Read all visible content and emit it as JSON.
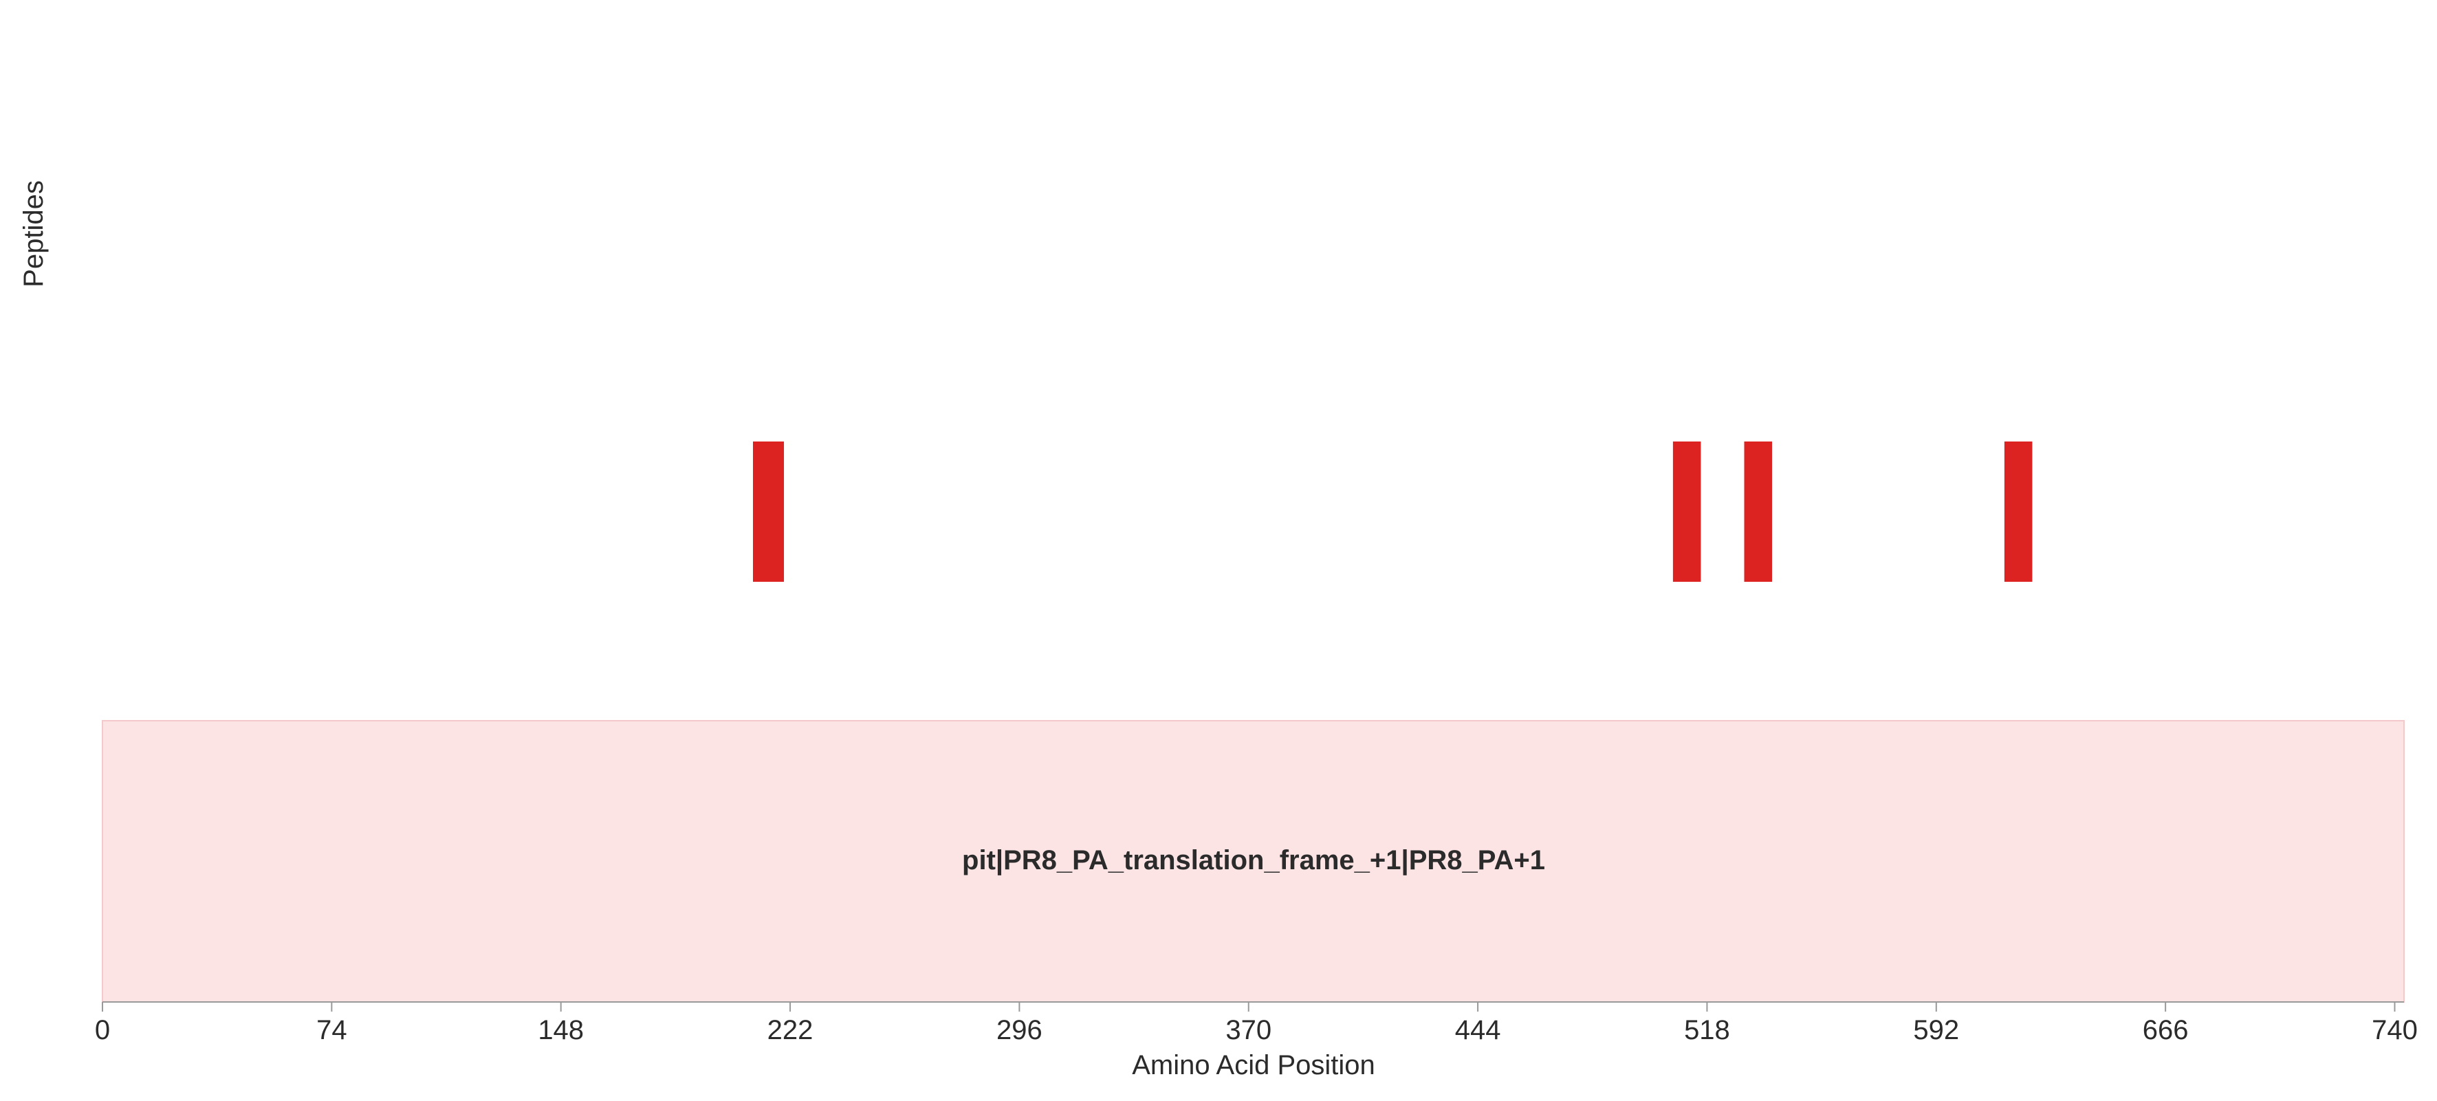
{
  "chart_data": {
    "type": "bar",
    "title": "",
    "xlabel": "Amino Acid Position",
    "ylabel": "Peptides",
    "xlim": [
      0,
      743
    ],
    "x_ticks": [
      0,
      74,
      148,
      222,
      296,
      370,
      444,
      518,
      592,
      666,
      740
    ],
    "grid": false,
    "legend": "none",
    "peptide_color": "#dd2222",
    "protein": {
      "name": "pit|PR8_PA_translation_frame_+1|PR8_PA+1",
      "start": 0,
      "end": 743,
      "fill_color": "#fce4e5",
      "border_color": "#f3c9cc"
    },
    "peptides": [
      {
        "start": 210,
        "end": 220
      },
      {
        "start": 507,
        "end": 516
      },
      {
        "start": 530,
        "end": 539
      },
      {
        "start": 614,
        "end": 623
      }
    ],
    "axis_color": "#999999"
  }
}
